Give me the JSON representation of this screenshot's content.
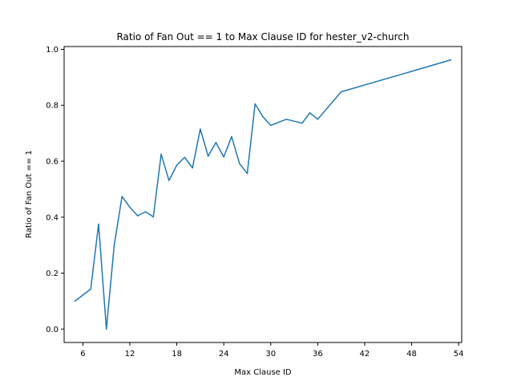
{
  "chart_data": {
    "type": "line",
    "title": "Ratio of Fan Out == 1 to Max Clause ID for hester_v2-church",
    "xlabel": "Max Clause ID",
    "ylabel": "Ratio of Fan Out == 1",
    "xlim": [
      3.6,
      54.4
    ],
    "ylim": [
      -0.048,
      1.01
    ],
    "xticks": [
      6,
      12,
      18,
      24,
      30,
      36,
      42,
      48,
      54
    ],
    "yticks": [
      0.0,
      0.2,
      0.4,
      0.6,
      0.8,
      1.0
    ],
    "xtick_labels": [
      "6",
      "12",
      "18",
      "24",
      "30",
      "36",
      "42",
      "48",
      "54"
    ],
    "ytick_labels": [
      "0.0",
      "0.2",
      "0.4",
      "0.6",
      "0.8",
      "1.0"
    ],
    "grid": false,
    "line_color": "#1f77b4",
    "series": [
      {
        "x": [
          5,
          7,
          8,
          9,
          10,
          11,
          12,
          13,
          14,
          15,
          16,
          17,
          18,
          19,
          20,
          21,
          22,
          23,
          24,
          25,
          26,
          27,
          28,
          29,
          30,
          32,
          34,
          35,
          36,
          39,
          53
        ],
        "values": [
          0.1,
          0.143,
          0.375,
          0.0,
          0.3,
          0.474,
          0.435,
          0.405,
          0.419,
          0.401,
          0.625,
          0.531,
          0.586,
          0.614,
          0.576,
          0.715,
          0.618,
          0.667,
          0.615,
          0.688,
          0.592,
          0.556,
          0.805,
          0.759,
          0.728,
          0.75,
          0.736,
          0.773,
          0.75,
          0.848,
          0.962
        ]
      }
    ]
  }
}
